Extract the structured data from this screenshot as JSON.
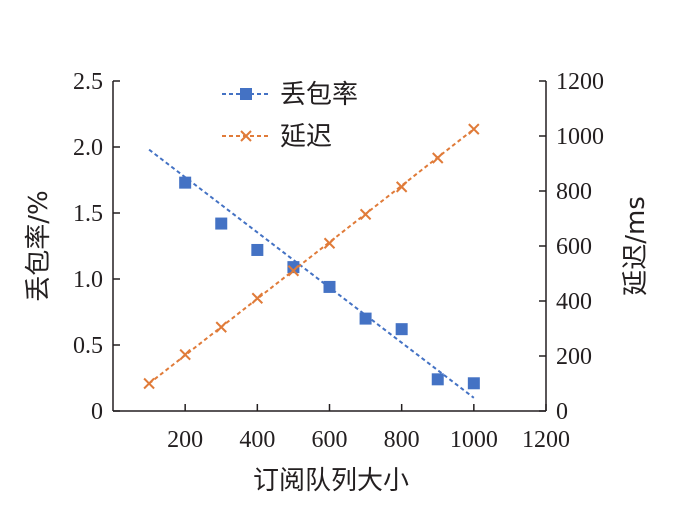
{
  "chart_data": {
    "type": "scatter",
    "title": "",
    "xlabel": "订阅队列大小",
    "ylabel_left": "丢包率/%",
    "ylabel_right": "延迟/ms",
    "xlim": [
      0,
      1200
    ],
    "ylim_left": [
      0,
      2.5
    ],
    "ylim_right": [
      0,
      1200
    ],
    "x_ticks": [
      200,
      400,
      600,
      800,
      1000,
      1200
    ],
    "y_ticks_left": [
      "0",
      "0.5",
      "1.0",
      "1.5",
      "2.0",
      "2.5"
    ],
    "y_ticks_right": [
      "0",
      "200",
      "400",
      "600",
      "800",
      "1000",
      "1200"
    ],
    "legend_position": "top-center",
    "series": [
      {
        "name": "丢包率",
        "axis": "left",
        "marker": "square",
        "color": "#4472c4",
        "x": [
          200,
          300,
          400,
          500,
          600,
          700,
          800,
          900,
          1000
        ],
        "y": [
          1.73,
          1.42,
          1.22,
          1.09,
          0.94,
          0.7,
          0.62,
          0.24,
          0.21
        ],
        "trendline": {
          "x": [
            100,
            1000
          ],
          "y": [
            1.98,
            0.1
          ]
        }
      },
      {
        "name": "延迟",
        "axis": "right",
        "marker": "x",
        "color": "#e07b39",
        "x": [
          100,
          200,
          300,
          400,
          500,
          600,
          700,
          800,
          900,
          1000
        ],
        "y": [
          100,
          205,
          305,
          410,
          510,
          610,
          715,
          815,
          920,
          1025
        ],
        "trendline": {
          "x": [
            100,
            1000
          ],
          "y": [
            100,
            1025
          ]
        }
      }
    ]
  }
}
